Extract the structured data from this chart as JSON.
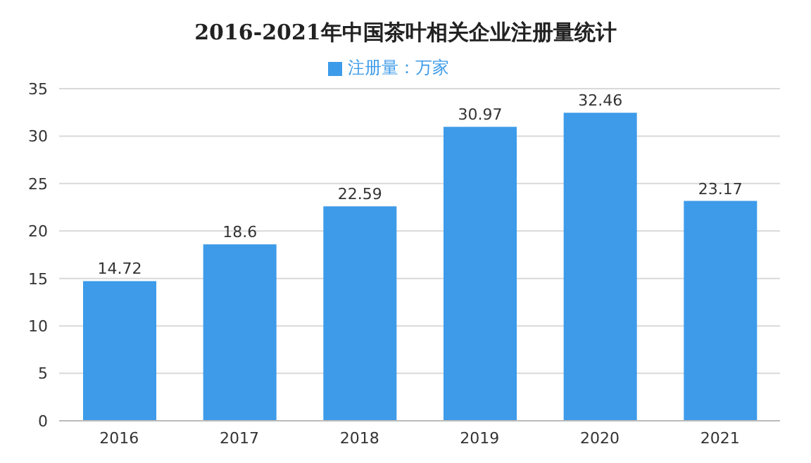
{
  "chart_data": {
    "type": "bar",
    "title": "2016-2021年中国茶叶相关企业注册量统计",
    "categories": [
      "2016",
      "2017",
      "2018",
      "2019",
      "2020",
      "2021"
    ],
    "series": [
      {
        "name": "注册量：万家",
        "color": "#3d9be9",
        "values": [
          14.72,
          18.6,
          22.59,
          30.97,
          32.46,
          23.17
        ]
      }
    ],
    "ylim": [
      0,
      35
    ],
    "yticks": [
      0,
      5,
      10,
      15,
      20,
      25,
      30,
      35
    ],
    "grid": "y",
    "legend": "top",
    "data_labels": true
  }
}
